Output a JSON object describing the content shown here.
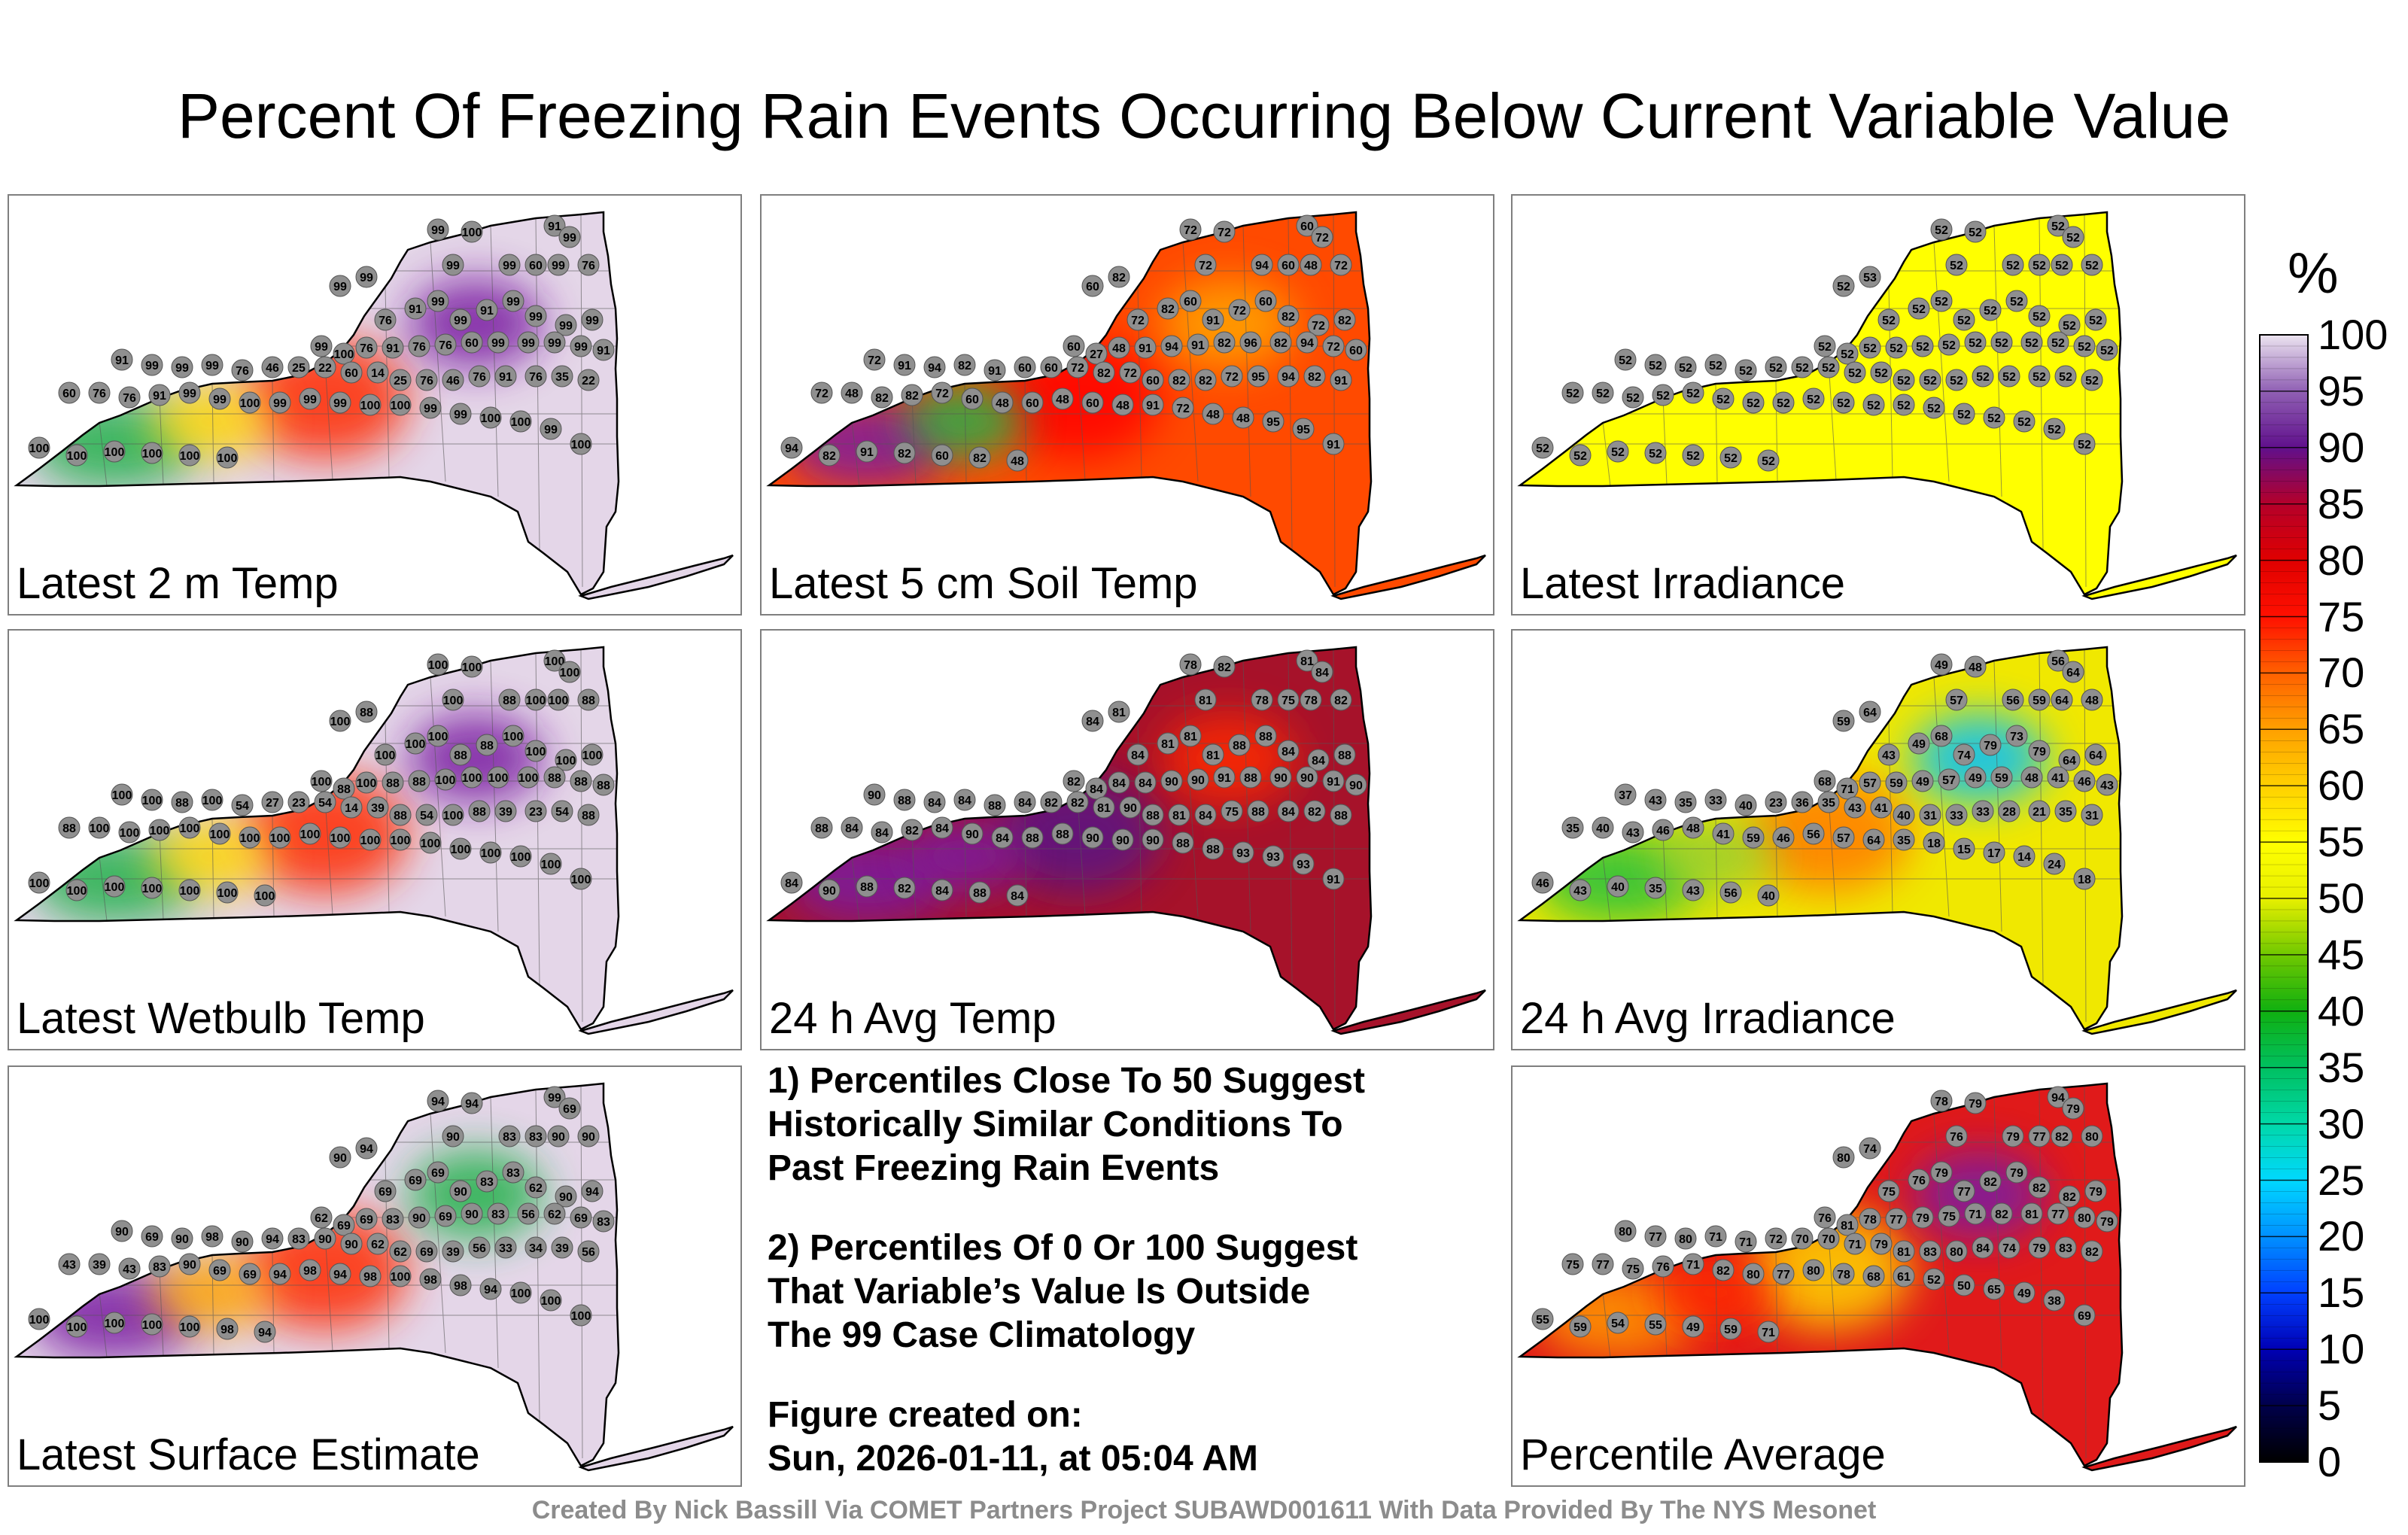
{
  "title": "Percent Of Freezing Rain Events Occurring Below Current Variable Value",
  "unit": "%",
  "panels": [
    {
      "label": "Latest 2 m Temp",
      "background": "#e4d6e8",
      "blobs": [
        {
          "c": "#22b14c",
          "v": 30
        },
        {
          "c": "#ff2a00",
          "v": 75
        },
        {
          "c": "#7a1fa2",
          "v": 90
        },
        {
          "c": "#ffd700",
          "v": 55
        }
      ],
      "stations": [
        "99",
        "100",
        "91",
        "99",
        "99",
        "99",
        "99",
        "99",
        "60",
        "99",
        "76",
        "76",
        "91",
        "99",
        "99",
        "91",
        "99",
        "99",
        "99",
        "99",
        "99",
        "100",
        "76",
        "91",
        "76",
        "76",
        "60",
        "99",
        "99",
        "99",
        "99",
        "91",
        "91",
        "99",
        "99",
        "99",
        "76",
        "46",
        "25",
        "22",
        "60",
        "14",
        "25",
        "76",
        "46",
        "76",
        "91",
        "76",
        "35",
        "22",
        "60",
        "76",
        "76",
        "91",
        "99",
        "99",
        "100",
        "99",
        "99",
        "99",
        "100",
        "100",
        "99",
        "99",
        "100",
        "100",
        "99",
        "100",
        "100",
        "100",
        "100",
        "100",
        "100",
        "100"
      ]
    },
    {
      "label": "Latest 5 cm Soil Temp",
      "background": "#ff4a00",
      "blobs": [
        {
          "c": "#7a1fa2",
          "v": 91
        },
        {
          "c": "#ff0000",
          "v": 72
        },
        {
          "c": "#ffa500",
          "v": 60
        },
        {
          "c": "#22b14c",
          "v": 27
        }
      ],
      "stations": [
        "72",
        "72",
        "60",
        "72",
        "60",
        "82",
        "72",
        "94",
        "60",
        "48",
        "72",
        "72",
        "82",
        "60",
        "91",
        "72",
        "60",
        "82",
        "72",
        "82",
        "60",
        "27",
        "48",
        "91",
        "94",
        "91",
        "82",
        "96",
        "82",
        "94",
        "72",
        "60",
        "72",
        "91",
        "94",
        "82",
        "91",
        "60",
        "60",
        "72",
        "82",
        "72",
        "60",
        "82",
        "82",
        "72",
        "95",
        "94",
        "82",
        "91",
        "72",
        "48",
        "82",
        "82",
        "72",
        "60",
        "48",
        "60",
        "48",
        "60",
        "48",
        "91",
        "72",
        "48",
        "48",
        "95",
        "95",
        "91",
        "94",
        "82",
        "91",
        "82",
        "60",
        "82",
        "48"
      ]
    },
    {
      "label": "Latest Irradiance",
      "background": "#ffff00",
      "blobs": [],
      "stations": [
        "52",
        "52",
        "52",
        "52",
        "52",
        "53",
        "52",
        "52",
        "52",
        "52",
        "52",
        "52",
        "52",
        "52",
        "52",
        "52",
        "52",
        "52",
        "52",
        "52",
        "52",
        "52",
        "52",
        "52",
        "52",
        "52",
        "52",
        "52",
        "52",
        "52",
        "52",
        "52",
        "52",
        "52",
        "52",
        "52",
        "52",
        "52",
        "52",
        "52",
        "52",
        "52",
        "52",
        "52",
        "52",
        "52",
        "52",
        "52",
        "52",
        "52",
        "52",
        "52",
        "52",
        "52",
        "52",
        "52",
        "52",
        "52",
        "52",
        "52",
        "52",
        "52",
        "52",
        "52",
        "52",
        "52",
        "52",
        "52",
        "52",
        "52",
        "52",
        "52",
        "52",
        "52",
        "52"
      ]
    },
    {
      "label": "Latest Wetbulb Temp",
      "background": "#e4d6e8",
      "blobs": [
        {
          "c": "#22b14c",
          "v": 30
        },
        {
          "c": "#ff2a00",
          "v": 75
        },
        {
          "c": "#7a1fa2",
          "v": 90
        },
        {
          "c": "#ffd700",
          "v": 55
        }
      ],
      "stations": [
        "100",
        "100",
        "100",
        "100",
        "100",
        "88",
        "100",
        "88",
        "100",
        "100",
        "88",
        "100",
        "100",
        "100",
        "88",
        "88",
        "100",
        "100",
        "100",
        "100",
        "100",
        "88",
        "100",
        "88",
        "88",
        "100",
        "100",
        "100",
        "100",
        "88",
        "88",
        "88",
        "100",
        "100",
        "88",
        "100",
        "54",
        "27",
        "23",
        "54",
        "14",
        "39",
        "88",
        "54",
        "100",
        "88",
        "39",
        "23",
        "54",
        "88",
        "88",
        "100",
        "100",
        "100",
        "100",
        "100",
        "100",
        "100",
        "100",
        "100",
        "100",
        "100",
        "100",
        "100",
        "100",
        "100",
        "100",
        "100",
        "100",
        "100",
        "100",
        "100",
        "100",
        "100",
        "100"
      ]
    },
    {
      "label": "24 h Avg Temp",
      "background": "#a6122a",
      "blobs": [
        {
          "c": "#7a1fa2",
          "v": 90
        },
        {
          "c": "#5a1585",
          "v": 94
        },
        {
          "c": "#ff2a00",
          "v": 76
        },
        {
          "c": "#7a1fa2",
          "v": 88
        }
      ],
      "stations": [
        "78",
        "82",
        "81",
        "84",
        "84",
        "81",
        "81",
        "78",
        "75",
        "78",
        "82",
        "84",
        "81",
        "81",
        "81",
        "88",
        "88",
        "84",
        "84",
        "88",
        "82",
        "84",
        "84",
        "84",
        "90",
        "90",
        "91",
        "88",
        "90",
        "90",
        "91",
        "90",
        "90",
        "88",
        "84",
        "84",
        "88",
        "84",
        "82",
        "82",
        "81",
        "90",
        "88",
        "81",
        "84",
        "75",
        "88",
        "84",
        "82",
        "88",
        "88",
        "84",
        "84",
        "82",
        "84",
        "90",
        "84",
        "88",
        "88",
        "90",
        "90",
        "90",
        "88",
        "88",
        "93",
        "93",
        "93",
        "91",
        "84",
        "90",
        "88",
        "82",
        "84",
        "88",
        "84"
      ]
    },
    {
      "label": "24 h Avg Irradiance",
      "background": "#f0e800",
      "blobs": [
        {
          "c": "#22c040",
          "v": 35
        },
        {
          "c": "#ff7a00",
          "v": 68
        },
        {
          "c": "#00c0ff",
          "v": 20
        },
        {
          "c": "#9acd32",
          "v": 45
        }
      ],
      "stations": [
        "49",
        "48",
        "56",
        "64",
        "59",
        "64",
        "57",
        "56",
        "59",
        "64",
        "48",
        "43",
        "49",
        "68",
        "74",
        "79",
        "73",
        "79",
        "64",
        "64",
        "68",
        "71",
        "57",
        "59",
        "49",
        "57",
        "49",
        "59",
        "48",
        "41",
        "46",
        "43",
        "37",
        "43",
        "35",
        "33",
        "40",
        "23",
        "36",
        "35",
        "43",
        "41",
        "40",
        "31",
        "33",
        "33",
        "28",
        "21",
        "35",
        "31",
        "35",
        "40",
        "43",
        "46",
        "48",
        "41",
        "59",
        "46",
        "56",
        "57",
        "64",
        "35",
        "18",
        "15",
        "17",
        "14",
        "24",
        "18",
        "46",
        "43",
        "40",
        "35",
        "43",
        "56",
        "40"
      ]
    },
    {
      "label": "Latest Surface Estimate",
      "background": "#e4d6e8",
      "blobs": [
        {
          "c": "#7a1fa2",
          "v": 90
        },
        {
          "c": "#ff2a00",
          "v": 72
        },
        {
          "c": "#22b14c",
          "v": 38
        },
        {
          "c": "#ffa500",
          "v": 62
        }
      ],
      "stations": [
        "94",
        "94",
        "99",
        "69",
        "90",
        "94",
        "90",
        "83",
        "83",
        "90",
        "90",
        "69",
        "69",
        "69",
        "90",
        "83",
        "83",
        "62",
        "90",
        "94",
        "62",
        "69",
        "69",
        "83",
        "90",
        "69",
        "90",
        "83",
        "56",
        "62",
        "69",
        "83",
        "90",
        "69",
        "90",
        "98",
        "90",
        "94",
        "83",
        "90",
        "90",
        "62",
        "62",
        "69",
        "39",
        "56",
        "33",
        "34",
        "39",
        "56",
        "43",
        "39",
        "43",
        "83",
        "90",
        "69",
        "69",
        "94",
        "98",
        "94",
        "98",
        "100",
        "98",
        "98",
        "94",
        "100",
        "100",
        "100",
        "100",
        "100",
        "100",
        "100",
        "100",
        "98",
        "94"
      ]
    },
    {
      "label": "Percentile Average",
      "background": "#e01a1a",
      "blobs": [
        {
          "c": "#ff9a00",
          "v": 62
        },
        {
          "c": "#ffd700",
          "v": 55
        },
        {
          "c": "#7a1fa2",
          "v": 90
        },
        {
          "c": "#ff2a00",
          "v": 80
        }
      ],
      "stations": [
        "78",
        "79",
        "94",
        "79",
        "80",
        "74",
        "76",
        "79",
        "77",
        "82",
        "80",
        "75",
        "76",
        "79",
        "77",
        "82",
        "79",
        "82",
        "82",
        "79",
        "76",
        "81",
        "78",
        "77",
        "79",
        "75",
        "71",
        "82",
        "81",
        "77",
        "80",
        "79",
        "80",
        "77",
        "80",
        "71",
        "71",
        "72",
        "70",
        "70",
        "71",
        "79",
        "81",
        "83",
        "80",
        "84",
        "74",
        "79",
        "83",
        "82",
        "75",
        "77",
        "75",
        "76",
        "71",
        "82",
        "80",
        "77",
        "80",
        "78",
        "68",
        "61",
        "52",
        "50",
        "65",
        "49",
        "38",
        "69",
        "55",
        "59",
        "54",
        "55",
        "49",
        "59",
        "71"
      ]
    }
  ],
  "notes": [
    [
      "1) Percentiles Close To 50 Suggest",
      "Historically Similar Conditions To",
      "Past Freezing Rain Events"
    ],
    [
      "2) Percentiles Of 0 Or 100 Suggest",
      "That Variable’s Value Is Outside",
      "The 99 Case Climatology"
    ],
    [
      "Figure created on:",
      "Sun, 2026-01-11, at 05:04 AM"
    ]
  ],
  "credit": "Created By Nick Bassill Via COMET Partners Project SUBAWD001611 With Data Provided By The NYS Mesonet",
  "colorbar": {
    "min": 0,
    "max": 100,
    "ticks": [
      "0",
      "5",
      "10",
      "15",
      "20",
      "25",
      "30",
      "35",
      "40",
      "45",
      "50",
      "55",
      "60",
      "65",
      "70",
      "75",
      "80",
      "85",
      "90",
      "95",
      "100"
    ],
    "stops": [
      {
        "v": 0,
        "c": "#000000"
      },
      {
        "v": 5,
        "c": "#00004a"
      },
      {
        "v": 10,
        "c": "#0000b4"
      },
      {
        "v": 15,
        "c": "#0040ff"
      },
      {
        "v": 20,
        "c": "#0090ff"
      },
      {
        "v": 25,
        "c": "#00d8ff"
      },
      {
        "v": 30,
        "c": "#00d8a8"
      },
      {
        "v": 35,
        "c": "#00c060"
      },
      {
        "v": 40,
        "c": "#10b010"
      },
      {
        "v": 45,
        "c": "#70c800"
      },
      {
        "v": 50,
        "c": "#e8f000"
      },
      {
        "v": 55,
        "c": "#ffff00"
      },
      {
        "v": 60,
        "c": "#ffd000"
      },
      {
        "v": 65,
        "c": "#ffa000"
      },
      {
        "v": 70,
        "c": "#ff6000"
      },
      {
        "v": 75,
        "c": "#ff1000"
      },
      {
        "v": 80,
        "c": "#e00000"
      },
      {
        "v": 85,
        "c": "#b4002a"
      },
      {
        "v": 90,
        "c": "#60108c"
      },
      {
        "v": 95,
        "c": "#9060b4"
      },
      {
        "v": 100,
        "c": "#ece4f0"
      }
    ]
  }
}
